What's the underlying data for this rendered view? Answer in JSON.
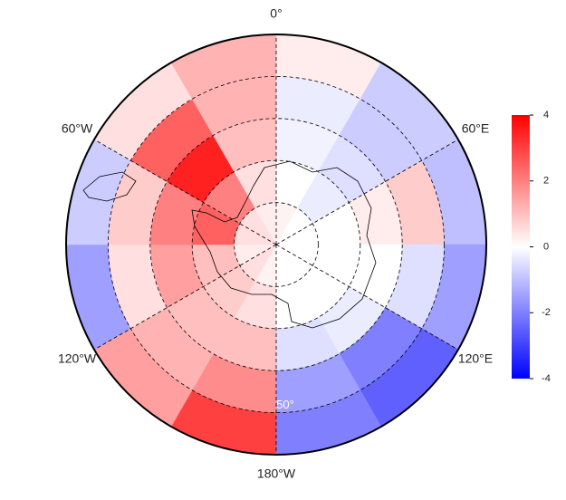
{
  "chart_data": {
    "type": "polar_heatmap",
    "lon_edges": [
      0,
      30,
      60,
      90,
      120,
      150,
      180,
      210,
      240,
      270,
      300,
      330,
      360
    ],
    "lat_edges": [
      -90,
      -80,
      -70,
      -60,
      -50,
      -40
    ],
    "values": [
      [
        0.2,
        0,
        0,
        0,
        0,
        0,
        0.2,
        0.5,
        0.3,
        0.5,
        0.5,
        0.3
      ],
      [
        0,
        -0.3,
        0,
        0,
        0,
        0,
        0.5,
        0.8,
        1,
        2.5,
        2,
        0.5
      ],
      [
        -0.2,
        -0.5,
        0.3,
        0,
        -0.3,
        -0.5,
        1,
        1,
        1.5,
        2,
        3.5,
        1
      ],
      [
        -0.3,
        -0.8,
        0.8,
        -0.5,
        -2,
        -1.5,
        1.8,
        1.2,
        0.5,
        0.8,
        2.5,
        1.2
      ],
      [
        0.3,
        -0.8,
        -1,
        -1.5,
        -2.5,
        -2,
        3,
        1.5,
        -1.5,
        -0.8,
        0.5,
        1.2
      ]
    ],
    "lon_ticks": [
      {
        "value": 0,
        "label": "0°"
      },
      {
        "value": 60,
        "label": "60°E"
      },
      {
        "value": 120,
        "label": "120°E"
      },
      {
        "value": 180,
        "label": "180°W"
      },
      {
        "value": 240,
        "label": "120°W"
      },
      {
        "value": 300,
        "label": "60°W"
      }
    ],
    "lat_grid": [
      -80,
      -70,
      -60,
      -50
    ],
    "lat_label": {
      "value": -50,
      "label": "50°"
    },
    "clim": [
      -4,
      4
    ],
    "cticks": [
      4,
      2,
      0,
      -2,
      -4
    ],
    "colors": [
      "#0000ff",
      "#ffffff",
      "#ff0000"
    ]
  }
}
